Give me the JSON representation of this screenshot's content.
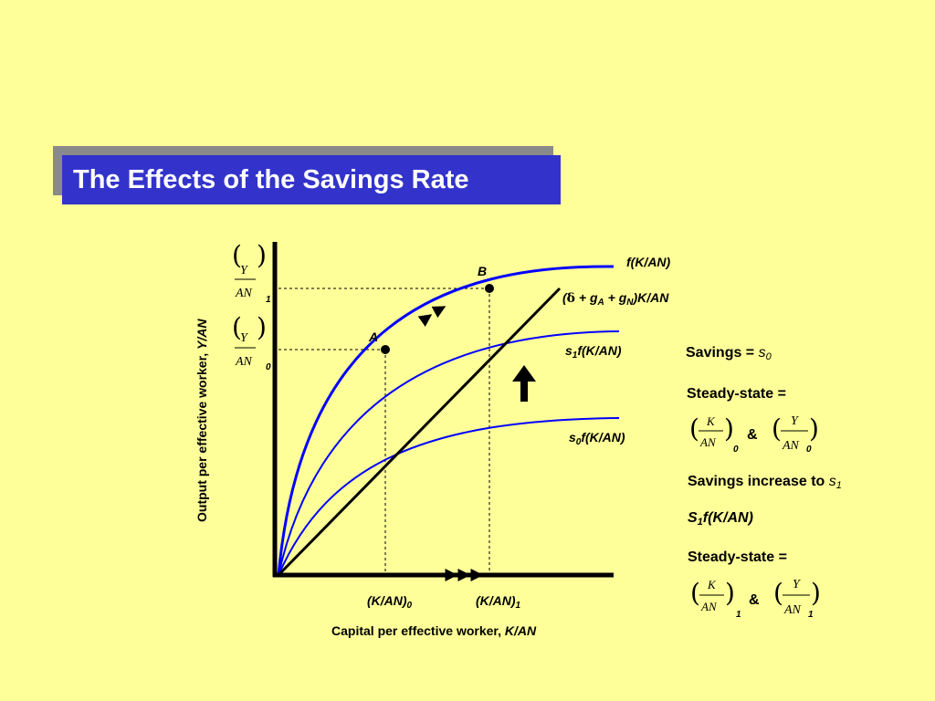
{
  "title": "The Effects of the Savings Rate",
  "diagram": {
    "y_axis_label_prefix": "Output per effective worker, ",
    "y_axis_label_var": "Y/AN",
    "x_axis_label_prefix": "Capital per effective worker, ",
    "x_axis_label_var": "K/AN",
    "y_frac_num": "Y",
    "y_frac_den": "AN",
    "y_sub_1": "1",
    "y_sub_0": "0",
    "x_tick_0": "(K/AN)",
    "x_tick_0_sub": "0",
    "x_tick_1": "(K/AN)",
    "x_tick_1_sub": "1",
    "point_a": "A",
    "point_b": "B",
    "curve_f": "f(K/AN)",
    "curve_line_open": "(",
    "curve_line_delta": "δ",
    "curve_line_mid1": " + g",
    "curve_line_subA": "A",
    "curve_line_mid2": " + g",
    "curve_line_subN": "N",
    "curve_line_end": ")K/AN",
    "curve_s1_pre": "s",
    "curve_s1_sub": "1",
    "curve_s1_post": "f(K/AN)",
    "curve_s0_pre": "s",
    "curve_s0_sub": "0",
    "curve_s0_post": "f(K/AN)"
  },
  "sidebar": {
    "savings_label": "Savings = ",
    "savings_var": "s",
    "savings_sub": "0",
    "steady_state_1": "Steady-state =",
    "ss1_k_num": "K",
    "ss1_k_den": "AN",
    "ss1_k_sub": "0",
    "ss1_amp": "&",
    "ss1_y_num": "Y",
    "ss1_y_den": "AN",
    "ss1_y_sub": "0",
    "increase_label": "Savings increase to ",
    "increase_var": "s",
    "increase_sub": "1",
    "s1f_pre": "S",
    "s1f_sub": "1",
    "s1f_post": "f(K/AN)",
    "steady_state_2": "Steady-state =",
    "ss2_k_num": "K",
    "ss2_k_den": "AN",
    "ss2_k_sub": "1",
    "ss2_amp": "&",
    "ss2_y_num": "Y",
    "ss2_y_den": "AN",
    "ss2_y_sub": "1"
  },
  "colors": {
    "background": "#ffff99",
    "title_bg": "#3333cc",
    "curve_blue": "#0000ff",
    "line_black": "#000000"
  }
}
